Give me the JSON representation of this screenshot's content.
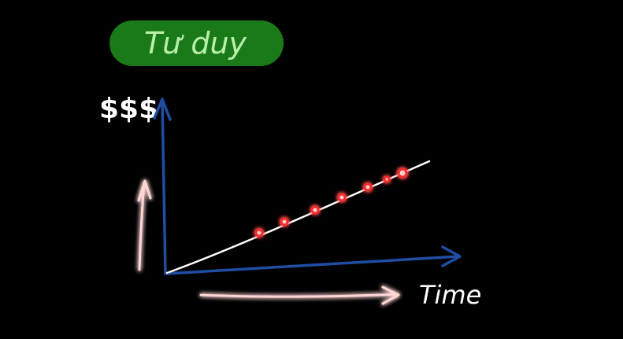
{
  "title": {
    "text": "Tư duy"
  },
  "y_axis": {
    "label": "$$$"
  },
  "x_axis": {
    "label": "Time"
  },
  "colors": {
    "background": "#000000",
    "title_pill": "#1a7a1a",
    "title_text": "#b8f0a8",
    "axis": "#1f4ea3",
    "trend_line": "#ffffff",
    "highlight": "#ff2a2a",
    "glow": "#ff3b3b",
    "label_text": "#ffffff"
  }
}
